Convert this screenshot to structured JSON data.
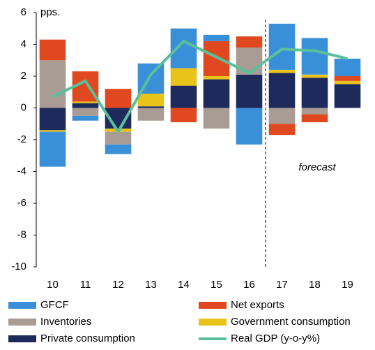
{
  "chart_data": {
    "type": "stacked-bar-line",
    "categories": [
      "10",
      "11",
      "12",
      "13",
      "14",
      "15",
      "16",
      "17",
      "18",
      "19"
    ],
    "series": [
      {
        "name": "GFCF",
        "color": "#3a8fd9",
        "values": [
          -2.2,
          -0.3,
          -0.6,
          1.9,
          2.5,
          0.4,
          -2.3,
          2.9,
          2.3,
          1.1
        ]
      },
      {
        "name": "Net exports",
        "color": "#e0491f",
        "values": [
          1.3,
          1.9,
          1.2,
          0,
          -0.9,
          2.2,
          0.7,
          -0.7,
          -0.5,
          0.3
        ]
      },
      {
        "name": "Inventories",
        "color": "#a89c94",
        "values": [
          3.0,
          -0.5,
          -0.8,
          -0.8,
          0,
          -1.3,
          1.7,
          -1.0,
          -0.4,
          0
        ]
      },
      {
        "name": "Government consumption",
        "color": "#e8c31a",
        "values": [
          -0.1,
          0.1,
          -0.2,
          0.8,
          1.1,
          0.2,
          0,
          0.2,
          0.2,
          0.2
        ]
      },
      {
        "name": "Private consumption",
        "color": "#1f2a5c",
        "values": [
          -1.4,
          0.3,
          -1.3,
          0.1,
          1.4,
          1.8,
          2.1,
          2.2,
          1.9,
          1.5
        ]
      },
      {
        "name": "Real GDP (y-o-y%)",
        "color": "#5bbf9a",
        "type": "line",
        "values": [
          0.7,
          1.7,
          -1.5,
          2.1,
          4.2,
          3.2,
          2.2,
          3.7,
          3.6,
          3.1
        ]
      }
    ],
    "annotations": [
      "pps.",
      "forecast"
    ],
    "ylim": [
      -10,
      6
    ],
    "yticks": [
      -10,
      -8,
      -6,
      -4,
      -2,
      0,
      2,
      4,
      6
    ]
  }
}
